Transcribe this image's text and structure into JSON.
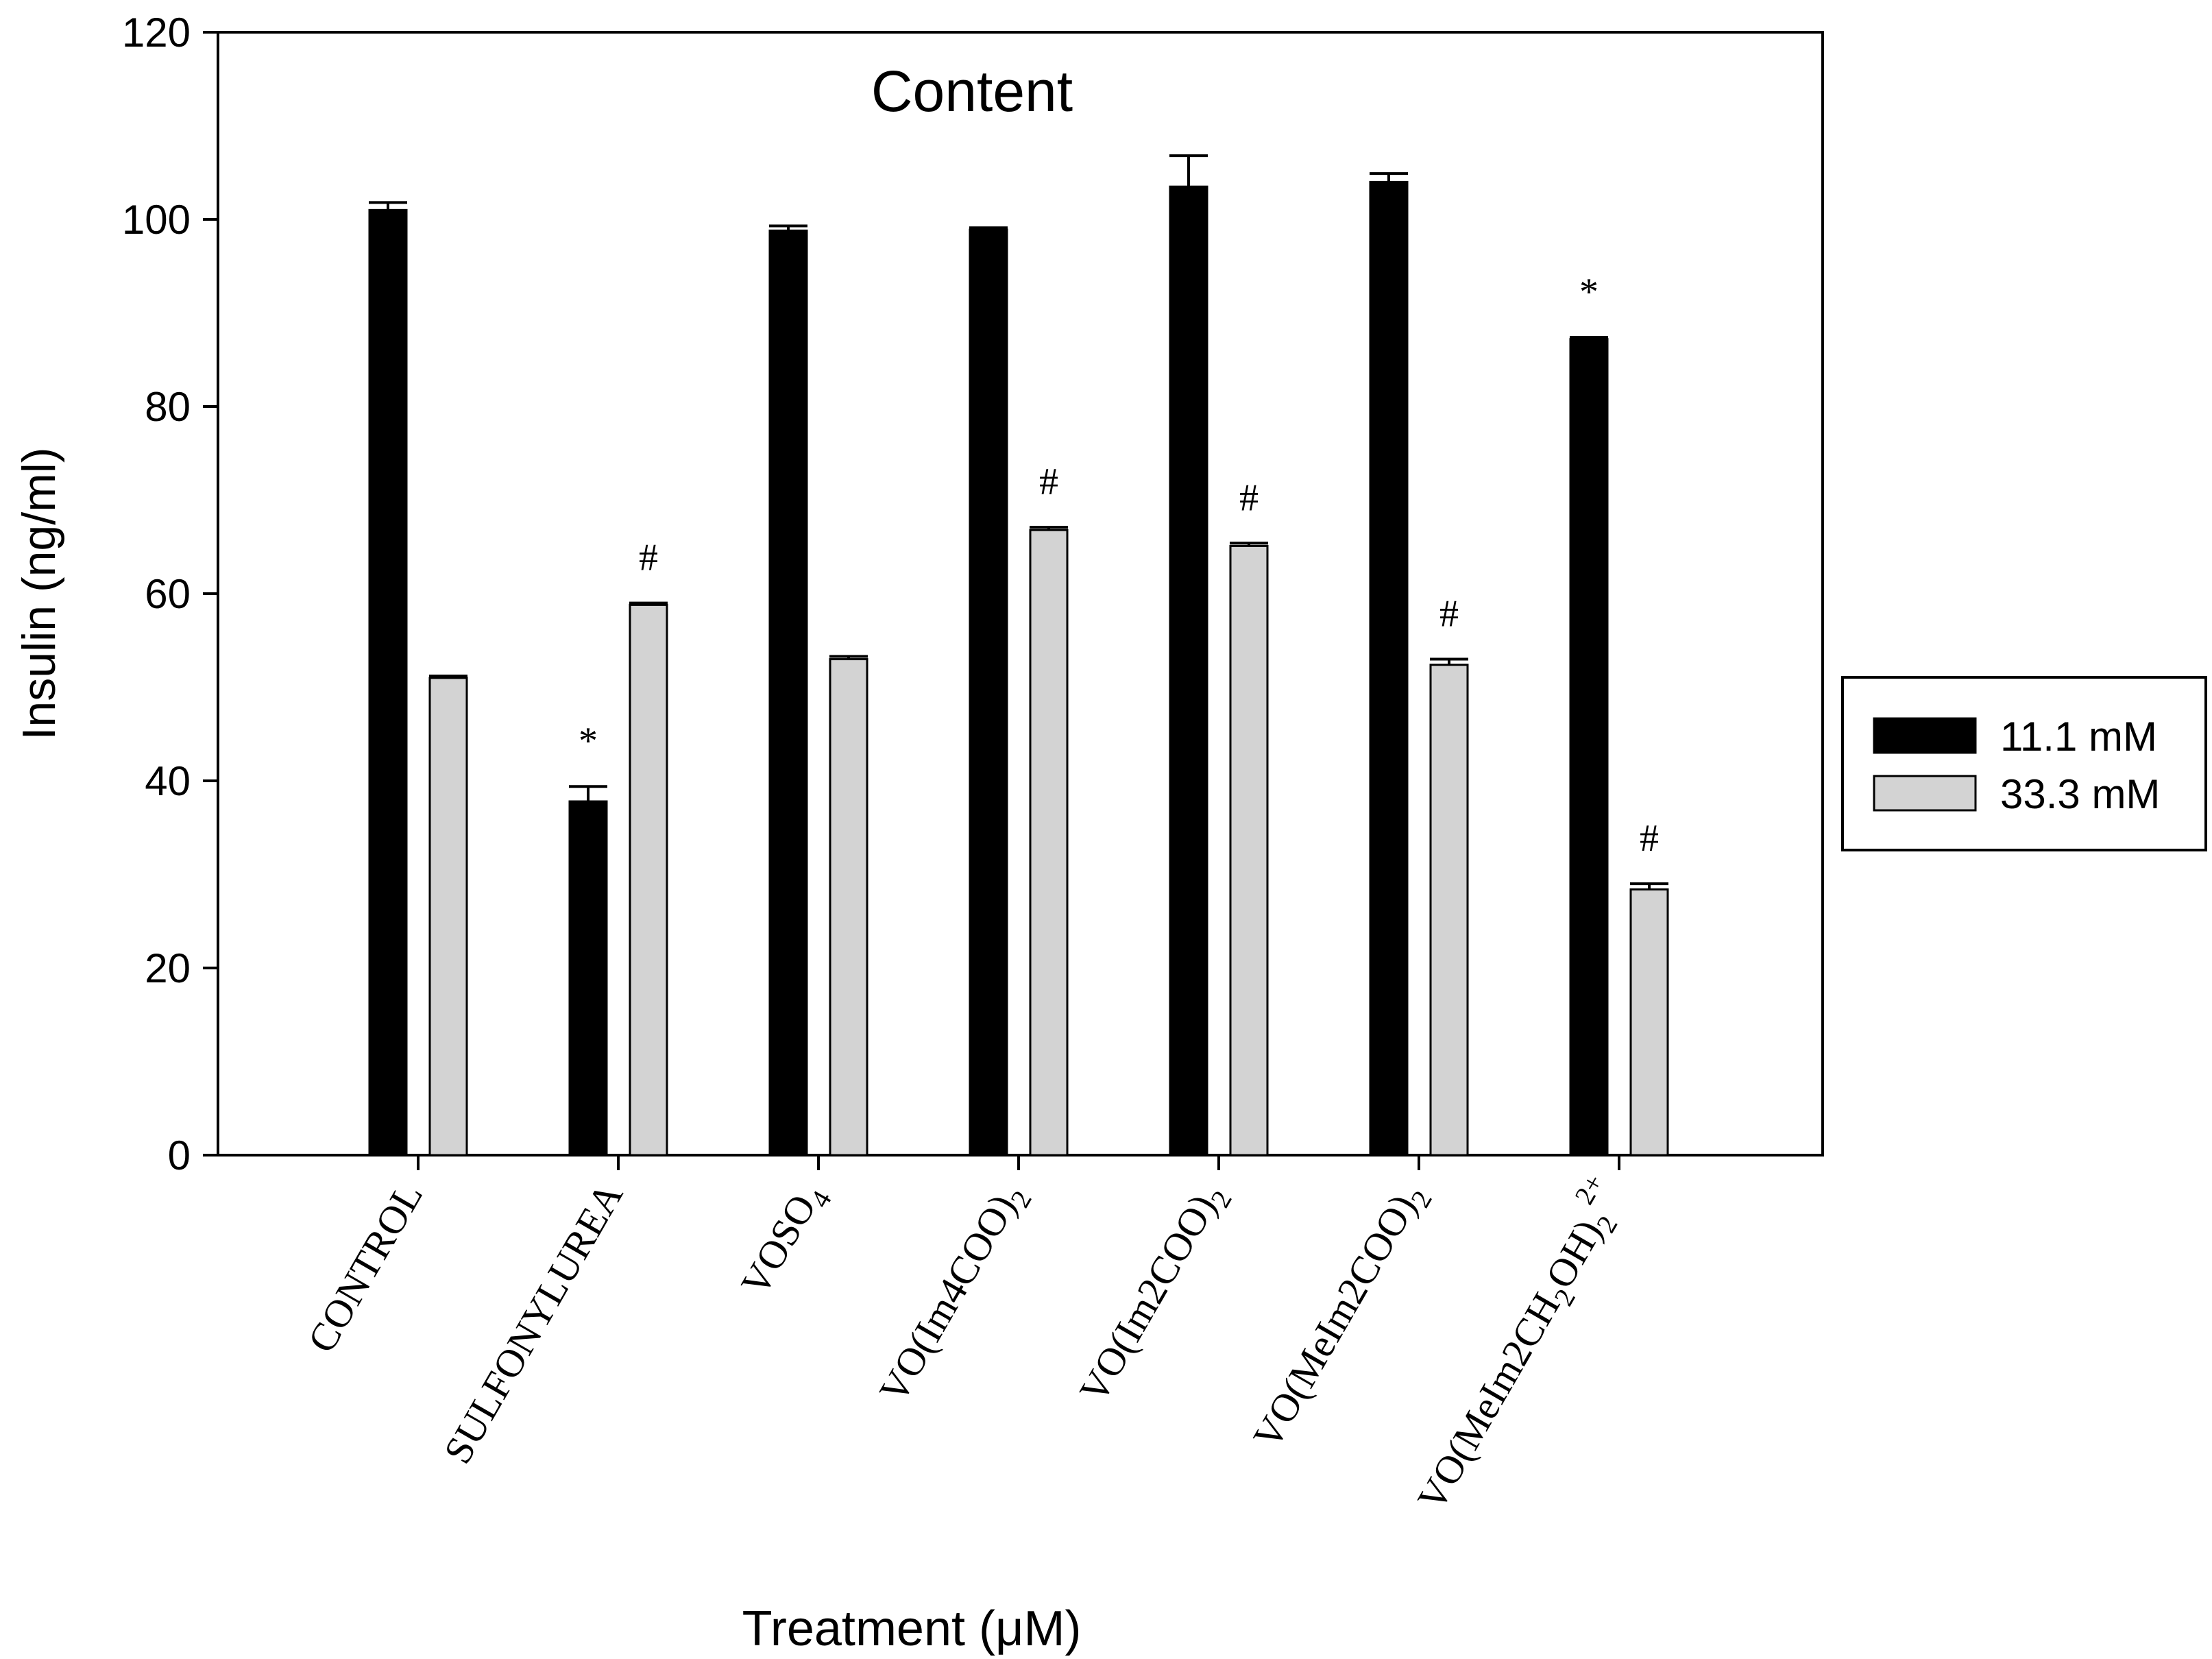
{
  "chart_data": {
    "type": "bar",
    "title": "Content",
    "xlabel": "Treatment (μM)",
    "ylabel": "Insulin (ng/ml)",
    "ylim": [
      0,
      120
    ],
    "yticks": [
      0,
      20,
      40,
      60,
      80,
      100,
      120
    ],
    "grid": false,
    "legend_position": "right",
    "categories": [
      {
        "label": "CONTROL",
        "sub": "",
        "sup": ""
      },
      {
        "label": "SULFONYLUREA",
        "sub": "",
        "sup": ""
      },
      {
        "label": "VOSO",
        "sub": "4",
        "sup": ""
      },
      {
        "label": "VO(Im4COO)",
        "sub": "2",
        "sup": ""
      },
      {
        "label": "VO(Im2COO)",
        "sub": "2",
        "sup": ""
      },
      {
        "label": "VO(MeIm2COO)",
        "sub": "2",
        "sup": ""
      },
      {
        "label": "VO(MeIm2CH",
        "sub": "2",
        "label2": "OH)",
        "sub2": "2",
        "sup": "2+"
      }
    ],
    "series": [
      {
        "name": "11.1 mM",
        "color": "#000000",
        "values": [
          101,
          37.8,
          98.8,
          98.9,
          103.5,
          104.0,
          87.2
        ],
        "errors": [
          0.8,
          1.6,
          0.5,
          0.2,
          3.3,
          0.9,
          0.2
        ],
        "annotations": [
          "",
          "*",
          "",
          "",
          "",
          "",
          "*"
        ]
      },
      {
        "name": "33.3 mM",
        "color": "#d3d3d3",
        "values": [
          51,
          58.8,
          53.0,
          66.8,
          65.1,
          52.4,
          28.4
        ],
        "errors": [
          0.2,
          0.2,
          0.3,
          0.3,
          0.3,
          0.6,
          0.6
        ],
        "annotations": [
          "",
          "#",
          "",
          "#",
          "#",
          "#",
          "#"
        ]
      }
    ]
  }
}
